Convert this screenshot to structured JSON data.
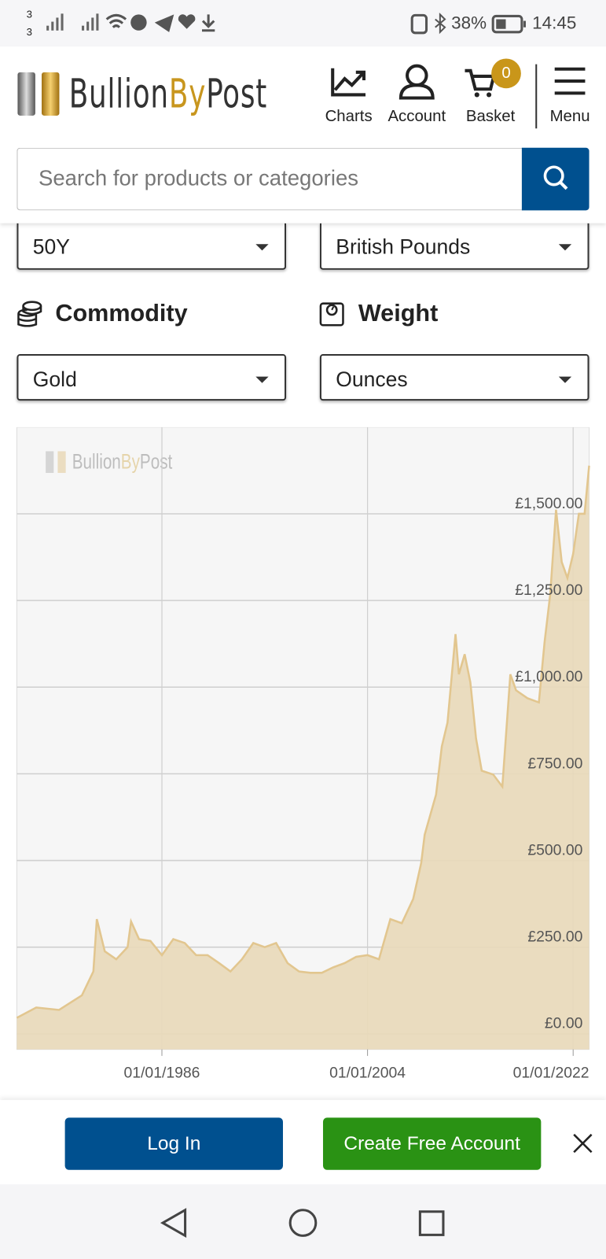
{
  "status_bar": {
    "sim_top": "3",
    "sim_bottom": "3",
    "battery": "38%",
    "time": "14:45"
  },
  "header": {
    "logo": {
      "part1": "Bullion",
      "part2": "By",
      "part3": "Post"
    },
    "nav": [
      "Charts",
      "Account",
      "Basket",
      "Menu"
    ],
    "basket_count": "0"
  },
  "search": {
    "placeholder": "Search for products or categories"
  },
  "filters": {
    "period": "50Y",
    "currency": "British Pounds",
    "commodity_label": "Commodity",
    "weight_label": "Weight",
    "commodity": "Gold",
    "weight": "Ounces"
  },
  "chart_data": {
    "type": "area",
    "x": [
      1973.3,
      1975,
      1977,
      1979,
      1980,
      1980.3,
      1981,
      1982,
      1983,
      1983.3,
      1984,
      1985,
      1986,
      1987,
      1988,
      1989,
      1990,
      1991,
      1992,
      1993,
      1994,
      1995,
      1996,
      1997,
      1998,
      1999,
      2000,
      2001,
      2002,
      2003,
      2004,
      2005,
      2006,
      2007,
      2008,
      2008.7,
      2009,
      2010,
      2010.5,
      2011,
      2011.7,
      2012,
      2012.5,
      2013,
      2013.5,
      2014,
      2015,
      2015.8,
      2016.5,
      2017,
      2018,
      2019,
      2019.5,
      2020,
      2020.5,
      2021,
      2021.5,
      2022,
      2022.5,
      2023,
      2023.4
    ],
    "values": [
      46,
      76,
      69,
      111,
      180,
      331,
      238,
      215,
      250,
      324,
      273,
      268,
      227,
      273,
      262,
      227,
      227,
      204,
      180,
      215,
      262,
      250,
      262,
      204,
      180,
      176,
      176,
      192,
      204,
      222,
      227,
      215,
      331,
      319,
      389,
      493,
      574,
      690,
      829,
      898,
      1153,
      1037,
      1095,
      1014,
      852,
      759,
      748,
      713,
      1037,
      991,
      968,
      956,
      1130,
      1269,
      1512,
      1361,
      1315,
      1384,
      1500,
      1500,
      1639
    ],
    "color": "#e9d9b9",
    "line_color": "#e2c68f",
    "xlim": [
      1973.3,
      2023.4
    ],
    "xticks": [
      {
        "value": 1986,
        "label": "01/01/1986"
      },
      {
        "value": 2004,
        "label": "01/01/2004"
      },
      {
        "value": 2022,
        "label": "01/01/2022"
      }
    ],
    "ylim": [
      -45,
      1750
    ],
    "yticks": [
      {
        "value": 0,
        "label": "£0.00"
      },
      {
        "value": 250,
        "label": "£250.00"
      },
      {
        "value": 500,
        "label": "£500.00"
      },
      {
        "value": 750,
        "label": "£750.00"
      },
      {
        "value": 1000,
        "label": "£1,000.00"
      },
      {
        "value": 1250,
        "label": "£1,250.00"
      },
      {
        "value": 1500,
        "label": "£1,500.00"
      }
    ],
    "grid": true
  },
  "footer": {
    "login": "Log In",
    "signup": "Create Free Account"
  }
}
